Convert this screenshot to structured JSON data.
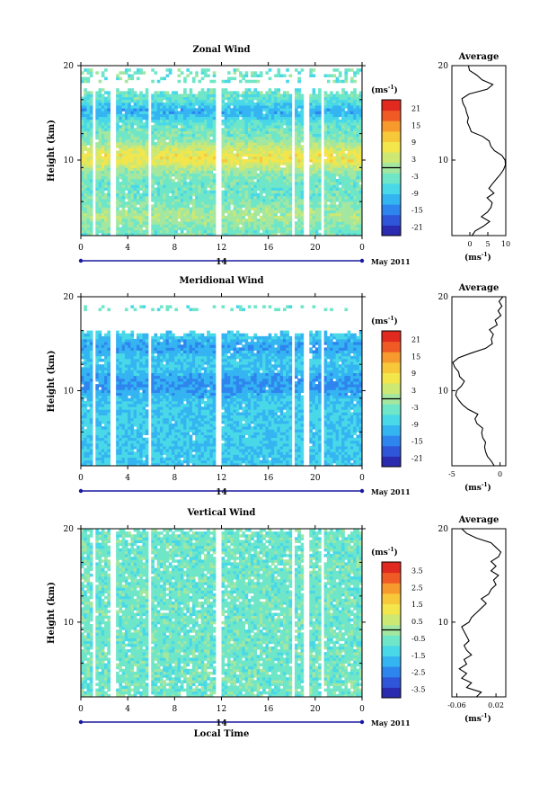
{
  "colors": {
    "scale": [
      "#2b2bb0",
      "#2f55d8",
      "#2e85ee",
      "#35b4f2",
      "#48d8e8",
      "#6fe6c8",
      "#a3e7a0",
      "#cde873",
      "#f3e64c",
      "#f7c83a",
      "#f79a2d",
      "#ef5a25",
      "#e02a20"
    ],
    "contour": "#000000",
    "axis_blue": "#1a1aa0"
  },
  "chart_data": [
    {
      "type": "heatmap",
      "title": "Zonal Wind",
      "ylabel": "Height (km)",
      "xlabel": "",
      "x_ticks": [
        "0",
        "4",
        "8",
        "12",
        "16",
        "20",
        "0"
      ],
      "x_range": [
        0,
        24
      ],
      "y_ticks": [
        "20",
        "10"
      ],
      "y_range": [
        2,
        20
      ],
      "date_label": "14",
      "month_label": "May 2011",
      "colorbar": {
        "unit_label": "(ms",
        "unit_sup": "-1",
        "unit_close": ")",
        "ticks": [
          "21",
          "15",
          "9",
          "3",
          "-3",
          "-9",
          "-15",
          "-21"
        ],
        "range": [
          -24,
          24
        ]
      },
      "profile": {
        "title": "Average",
        "x_ticks": [
          "0",
          "5",
          "10"
        ],
        "x_range": [
          -5,
          10
        ],
        "y_ticks": [
          "20",
          "10"
        ],
        "unit_label": "(ms",
        "unit_sup": "-1",
        "unit_close": ")",
        "points": [
          [
            0.6,
            2
          ],
          [
            1.5,
            2.5
          ],
          [
            3.8,
            3
          ],
          [
            5.5,
            3.5
          ],
          [
            3.2,
            4
          ],
          [
            4.9,
            4.5
          ],
          [
            5.9,
            5
          ],
          [
            6.2,
            5.5
          ],
          [
            4.8,
            6
          ],
          [
            6.7,
            6.5
          ],
          [
            5.3,
            7
          ],
          [
            6.3,
            7.5
          ],
          [
            7.4,
            8
          ],
          [
            8.5,
            8.5
          ],
          [
            9.4,
            9
          ],
          [
            9.9,
            9.5
          ],
          [
            9.8,
            10
          ],
          [
            8.9,
            10.5
          ],
          [
            6.8,
            11
          ],
          [
            5.8,
            11.5
          ],
          [
            5.4,
            12
          ],
          [
            3.6,
            12.5
          ],
          [
            0.4,
            13
          ],
          [
            -0.1,
            13.5
          ],
          [
            -0.7,
            14
          ],
          [
            -0.4,
            14.5
          ],
          [
            -0.9,
            15
          ],
          [
            -1.2,
            15.5
          ],
          [
            -1.9,
            16
          ],
          [
            -2.2,
            16.5
          ],
          [
            -0.2,
            17
          ],
          [
            4.8,
            17.5
          ],
          [
            6.4,
            18
          ],
          [
            3.4,
            18.5
          ],
          [
            1.9,
            19
          ],
          [
            -0.1,
            19.5
          ],
          [
            -0.4,
            20
          ]
        ]
      }
    },
    {
      "type": "heatmap",
      "title": "Meridional Wind",
      "ylabel": "Height (km)",
      "xlabel": "",
      "x_ticks": [
        "0",
        "4",
        "8",
        "12",
        "16",
        "20",
        "0"
      ],
      "x_range": [
        0,
        24
      ],
      "y_ticks": [
        "20",
        "10"
      ],
      "y_range": [
        2,
        20
      ],
      "date_label": "14",
      "month_label": "May 2011",
      "colorbar": {
        "unit_label": "(ms",
        "unit_sup": "-1",
        "unit_close": ")",
        "ticks": [
          "21",
          "15",
          "9",
          "3",
          "-3",
          "-9",
          "-15",
          "-21"
        ],
        "range": [
          -24,
          24
        ]
      },
      "profile": {
        "title": "Average",
        "x_ticks": [
          "-5",
          "0"
        ],
        "x_range": [
          -5,
          0.6
        ],
        "y_ticks": [
          "20",
          "10"
        ],
        "unit_label": "(ms",
        "unit_sup": "-1",
        "unit_close": ")",
        "points": [
          [
            -0.6,
            2
          ],
          [
            -0.9,
            2.5
          ],
          [
            -1.3,
            3
          ],
          [
            -1.5,
            3.5
          ],
          [
            -1.6,
            4
          ],
          [
            -1.5,
            4.5
          ],
          [
            -1.8,
            5
          ],
          [
            -1.9,
            5.5
          ],
          [
            -1.8,
            6
          ],
          [
            -2.4,
            6.5
          ],
          [
            -2.6,
            7
          ],
          [
            -2.3,
            7.5
          ],
          [
            -3.3,
            8
          ],
          [
            -3.9,
            8.5
          ],
          [
            -4.3,
            9
          ],
          [
            -4.6,
            9.5
          ],
          [
            -4.5,
            10
          ],
          [
            -4.0,
            10.5
          ],
          [
            -3.7,
            11
          ],
          [
            -4.2,
            11.5
          ],
          [
            -4.3,
            12
          ],
          [
            -4.7,
            12.5
          ],
          [
            -4.9,
            13
          ],
          [
            -4.3,
            13.5
          ],
          [
            -3.0,
            14
          ],
          [
            -1.5,
            14.5
          ],
          [
            -0.8,
            15
          ],
          [
            -0.9,
            15.5
          ],
          [
            -0.7,
            16
          ],
          [
            -1.1,
            16.5
          ],
          [
            -0.3,
            17
          ],
          [
            -0.5,
            17.5
          ],
          [
            0.1,
            18
          ],
          [
            -0.2,
            18.5
          ],
          [
            0.2,
            19
          ],
          [
            -0.1,
            19.5
          ],
          [
            0.3,
            20
          ]
        ]
      }
    },
    {
      "type": "heatmap",
      "title": "Vertical Wind",
      "ylabel": "Height (km)",
      "xlabel": "Local Time",
      "x_ticks": [
        "0",
        "4",
        "8",
        "12",
        "16",
        "20",
        "0"
      ],
      "x_range": [
        0,
        24
      ],
      "y_ticks": [
        "20",
        "10"
      ],
      "y_range": [
        2,
        20
      ],
      "date_label": "14",
      "month_label": "May 2011",
      "colorbar": {
        "unit_label": "(ms",
        "unit_sup": "-1",
        "unit_close": ")",
        "ticks": [
          "3.5",
          "2.5",
          "1.5",
          "0.5",
          "-0.5",
          "-1.5",
          "-2.5",
          "-3.5"
        ],
        "range": [
          -4,
          4
        ]
      },
      "profile": {
        "title": "Average",
        "x_ticks": [
          "-0.06",
          "0.02"
        ],
        "x_range": [
          -0.07,
          0.04
        ],
        "y_ticks": [
          "20",
          "10"
        ],
        "unit_label": "(ms",
        "unit_sup": "-1",
        "unit_close": ")",
        "points": [
          [
            -0.02,
            2
          ],
          [
            -0.01,
            2.5
          ],
          [
            -0.04,
            3
          ],
          [
            -0.03,
            3.5
          ],
          [
            -0.05,
            4
          ],
          [
            -0.04,
            4.5
          ],
          [
            -0.055,
            5
          ],
          [
            -0.04,
            5.5
          ],
          [
            -0.045,
            6
          ],
          [
            -0.03,
            6.5
          ],
          [
            -0.04,
            7
          ],
          [
            -0.045,
            7.5
          ],
          [
            -0.035,
            8
          ],
          [
            -0.04,
            8.5
          ],
          [
            -0.045,
            9
          ],
          [
            -0.05,
            9.5
          ],
          [
            -0.035,
            10
          ],
          [
            -0.03,
            10.5
          ],
          [
            -0.02,
            11
          ],
          [
            -0.01,
            11.5
          ],
          [
            0.0,
            12
          ],
          [
            -0.01,
            12.5
          ],
          [
            0.005,
            13
          ],
          [
            0.01,
            13.5
          ],
          [
            0.02,
            14
          ],
          [
            0.015,
            14.5
          ],
          [
            0.025,
            15
          ],
          [
            0.01,
            15.5
          ],
          [
            0.02,
            16
          ],
          [
            0.01,
            16.5
          ],
          [
            0.025,
            17
          ],
          [
            0.03,
            17.5
          ],
          [
            0.02,
            18
          ],
          [
            0.01,
            18.5
          ],
          [
            -0.02,
            19
          ],
          [
            -0.04,
            19.5
          ],
          [
            -0.05,
            20
          ]
        ]
      }
    }
  ]
}
